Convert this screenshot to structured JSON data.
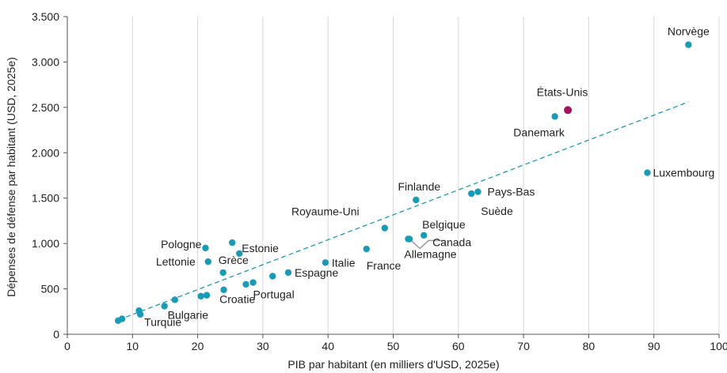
{
  "chart_data": {
    "type": "scatter",
    "title": "",
    "xlabel": "PIB par habitant (en milliers d'USD, 2025e)",
    "ylabel": "Dépenses de défense par habitant (USD, 2025e)",
    "xlim": [
      0,
      100
    ],
    "ylim": [
      0,
      3500
    ],
    "x_ticks": [
      0,
      10,
      20,
      30,
      40,
      50,
      60,
      70,
      80,
      90,
      100
    ],
    "y_ticks": [
      0,
      500,
      1000,
      1500,
      2000,
      2500,
      3000,
      3500
    ],
    "x_tick_labels": [
      "0",
      "10",
      "20",
      "30",
      "40",
      "50",
      "60",
      "70",
      "80",
      "90",
      "100"
    ],
    "y_tick_labels": [
      "0",
      "500",
      "1.000",
      "1.500",
      "2.000",
      "2.500",
      "3.000",
      "3.500"
    ],
    "grid": "vertical",
    "colors": {
      "point": "#1a9bb5",
      "highlight": "#a3155f",
      "trend": "#1a9bb5",
      "leader": "#9a9a9a"
    },
    "points": [
      {
        "x": 95.3,
        "y": 3190,
        "label": "Norvège"
      },
      {
        "x": 76.8,
        "y": 2470,
        "label": "États-Unis",
        "highlight": true
      },
      {
        "x": 74.8,
        "y": 2400,
        "label": "Danemark"
      },
      {
        "x": 89.0,
        "y": 1780,
        "label": "Luxembourg"
      },
      {
        "x": 53.5,
        "y": 1480,
        "label": "Finlande"
      },
      {
        "x": 63.0,
        "y": 1570,
        "label": "Pays-Bas"
      },
      {
        "x": 62.0,
        "y": 1550,
        "label": "Suède"
      },
      {
        "x": 48.7,
        "y": 1170,
        "label": "Royaume-Uni"
      },
      {
        "x": 54.7,
        "y": 1090,
        "label": "Belgique"
      },
      {
        "x": 52.5,
        "y": 1050,
        "label": "Canada"
      },
      {
        "x": 52.3,
        "y": 1050,
        "label": "Allemagne"
      },
      {
        "x": 45.9,
        "y": 940,
        "label": "France"
      },
      {
        "x": 39.6,
        "y": 790,
        "label": "Italie"
      },
      {
        "x": 33.9,
        "y": 680,
        "label": "Espagne"
      },
      {
        "x": 31.5,
        "y": 640,
        "label": ""
      },
      {
        "x": 28.5,
        "y": 570,
        "label": "Portugal"
      },
      {
        "x": 27.4,
        "y": 550,
        "label": ""
      },
      {
        "x": 25.3,
        "y": 1010,
        "label": ""
      },
      {
        "x": 26.4,
        "y": 890,
        "label": "Estonie"
      },
      {
        "x": 21.2,
        "y": 950,
        "label": "Pologne"
      },
      {
        "x": 21.6,
        "y": 800,
        "label": "Lettonie"
      },
      {
        "x": 23.9,
        "y": 680,
        "label": "Grèce"
      },
      {
        "x": 24.0,
        "y": 490,
        "label": ""
      },
      {
        "x": 21.4,
        "y": 430,
        "label": "Croatie"
      },
      {
        "x": 20.5,
        "y": 420,
        "label": ""
      },
      {
        "x": 16.5,
        "y": 380,
        "label": ""
      },
      {
        "x": 14.9,
        "y": 310,
        "label": "Bulgarie"
      },
      {
        "x": 11.0,
        "y": 260,
        "label": ""
      },
      {
        "x": 11.2,
        "y": 220,
        "label": "Turquie"
      },
      {
        "x": 8.4,
        "y": 170,
        "label": ""
      },
      {
        "x": 7.8,
        "y": 150,
        "label": ""
      }
    ],
    "trendline": {
      "x": [
        9.0,
        95.3
      ],
      "y": [
        190,
        2560
      ]
    }
  }
}
